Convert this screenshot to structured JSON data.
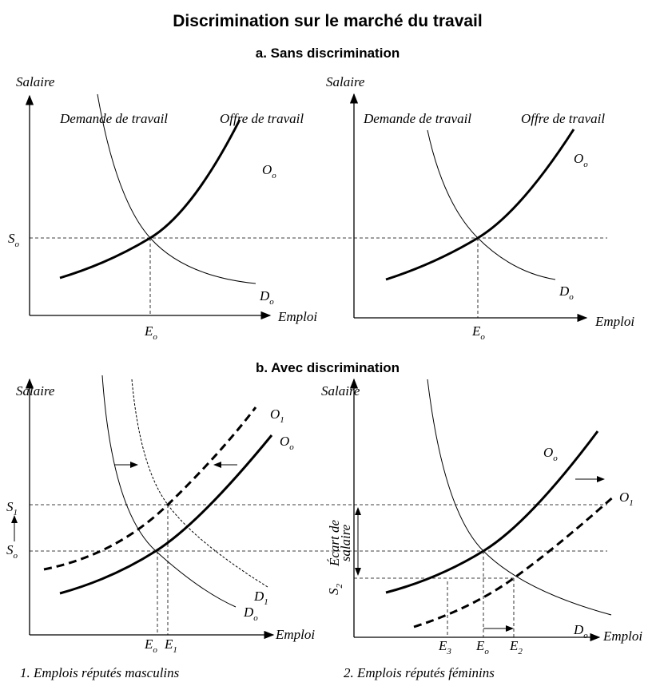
{
  "title": "Discrimination sur le marché du travail",
  "section_a": {
    "title": "a. Sans discrimination",
    "panels": [
      {
        "y_axis": "Salaire",
        "x_axis": "Emploi",
        "demand": "Demande de travail",
        "supply": "Offre de travail",
        "marks": [
          {
            "base": "O",
            "sub": "o"
          },
          {
            "base": "S",
            "sub": "o"
          },
          {
            "base": "D",
            "sub": "o"
          },
          {
            "base": "E",
            "sub": "o"
          }
        ]
      },
      {
        "y_axis": "Salaire",
        "x_axis": "Emploi",
        "demand": "Demande de travail",
        "supply": "Offre de travail",
        "marks": [
          {
            "base": "O",
            "sub": "o"
          },
          {
            "base": "D",
            "sub": "o"
          },
          {
            "base": "E",
            "sub": "o"
          }
        ]
      }
    ]
  },
  "section_b": {
    "title": "b. Avec discrimination",
    "panels": [
      {
        "y_axis": "Salaire",
        "x_axis": "Emploi",
        "caption": "1. Emplois réputés masculins",
        "marks": [
          {
            "base": "O",
            "sub": "1"
          },
          {
            "base": "O",
            "sub": "o"
          },
          {
            "base": "S",
            "sub": "1"
          },
          {
            "base": "S",
            "sub": "o"
          },
          {
            "base": "D",
            "sub": "1"
          },
          {
            "base": "D",
            "sub": "o"
          },
          {
            "base": "E",
            "sub": "o"
          },
          {
            "base": "E",
            "sub": "1"
          }
        ]
      },
      {
        "y_axis": "Salaire",
        "x_axis": "Emploi",
        "caption": "2. Emplois réputés féminins",
        "gap": [
          "Écart de",
          "salaire"
        ],
        "marks": [
          {
            "base": "O",
            "sub": "o"
          },
          {
            "base": "O",
            "sub": "1"
          },
          {
            "base": "S",
            "sub": "2"
          },
          {
            "base": "D",
            "sub": "o"
          },
          {
            "base": "E",
            "sub": "3"
          },
          {
            "base": "E",
            "sub": "o"
          },
          {
            "base": "E",
            "sub": "2"
          }
        ]
      }
    ]
  }
}
